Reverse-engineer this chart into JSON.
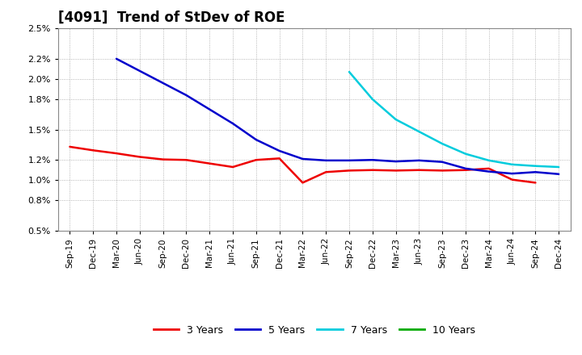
{
  "title": "[4091]  Trend of StDev of ROE",
  "xlabels": [
    "Sep-19",
    "Dec-19",
    "Mar-20",
    "Jun-20",
    "Sep-20",
    "Dec-20",
    "Mar-21",
    "Jun-21",
    "Sep-21",
    "Dec-21",
    "Mar-22",
    "Jun-22",
    "Sep-22",
    "Dec-22",
    "Mar-23",
    "Jun-23",
    "Sep-23",
    "Dec-23",
    "Mar-24",
    "Jun-24",
    "Sep-24",
    "Dec-24"
  ],
  "ylim": [
    0.005,
    0.025
  ],
  "ytick_vals": [
    0.005,
    0.008,
    0.01,
    0.012,
    0.015,
    0.018,
    0.02,
    0.022,
    0.025
  ],
  "ytick_labels": [
    "0.5%",
    "0.8%",
    "1.0%",
    "1.2%",
    "1.5%",
    "1.8%",
    "2.0%",
    "2.2%",
    "2.5%"
  ],
  "series": {
    "3yr": {
      "color": "#ee0000",
      "label": "3 Years",
      "y": [
        0.0133,
        0.01295,
        0.01265,
        0.0123,
        0.01205,
        0.012,
        0.01165,
        0.0113,
        0.012,
        0.01215,
        0.00975,
        0.0108,
        0.01095,
        0.011,
        0.01095,
        0.011,
        0.01095,
        0.011,
        0.01115,
        0.01005,
        0.00975,
        null
      ]
    },
    "5yr": {
      "color": "#0000cc",
      "label": "5 Years",
      "y": [
        null,
        null,
        0.022,
        0.0208,
        0.0196,
        0.0184,
        0.017,
        0.0156,
        0.014,
        0.0129,
        0.0121,
        0.01195,
        0.01195,
        0.012,
        0.01185,
        0.01195,
        0.0118,
        0.01115,
        0.01085,
        0.01065,
        0.0108,
        0.0106
      ]
    },
    "7yr": {
      "color": "#00ccdd",
      "label": "7 Years",
      "y": [
        null,
        null,
        null,
        null,
        null,
        null,
        null,
        null,
        null,
        null,
        null,
        null,
        0.0207,
        0.018,
        0.016,
        0.0148,
        0.0136,
        0.0126,
        0.01195,
        0.01155,
        0.0114,
        0.0113
      ]
    },
    "10yr": {
      "color": "#00aa00",
      "label": "10 Years",
      "y": [
        null,
        null,
        null,
        null,
        null,
        null,
        null,
        null,
        null,
        null,
        null,
        null,
        null,
        null,
        null,
        null,
        null,
        null,
        null,
        null,
        null,
        null
      ]
    }
  },
  "background_color": "#ffffff",
  "grid_color": "#999999"
}
